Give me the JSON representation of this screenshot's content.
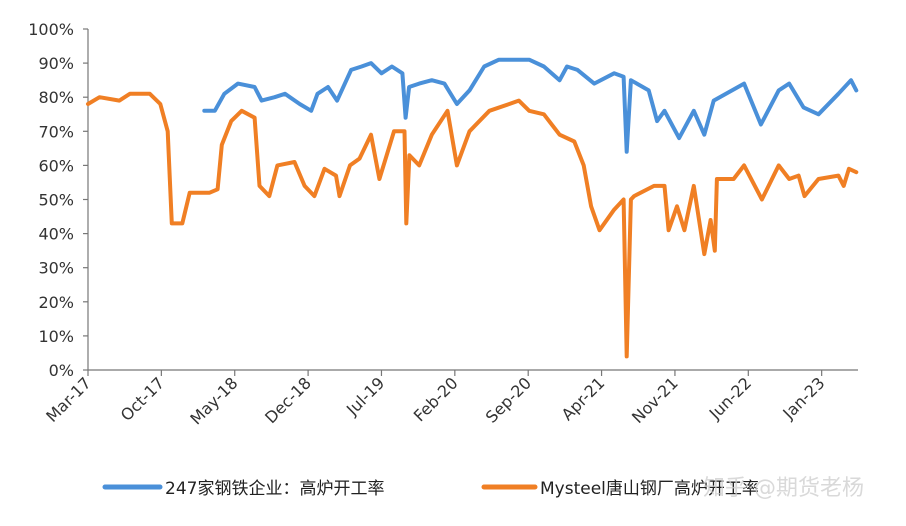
{
  "chart_data": {
    "type": "line",
    "title": "",
    "xlabel": "",
    "ylabel": "",
    "ylim": [
      0,
      100
    ],
    "y_ticks": [
      "0%",
      "10%",
      "20%",
      "30%",
      "40%",
      "50%",
      "60%",
      "70%",
      "80%",
      "90%",
      "100%"
    ],
    "x_ticks": [
      "Mar-17",
      "Oct-17",
      "May-18",
      "Dec-18",
      "Jul-19",
      "Feb-20",
      "Sep-20",
      "Apr-21",
      "Nov-21",
      "Jun-22",
      "Jan-23"
    ],
    "xlim": [
      "2017-03-01",
      "2023-04-15"
    ],
    "grid": false,
    "legend_position": "bottom",
    "series": [
      {
        "name": "247家钢铁企业：高炉开工率",
        "color": "#4a90d9",
        "points": [
          [
            "2018-02-04",
            76
          ],
          [
            "2018-03-04",
            76
          ],
          [
            "2018-04-01",
            81
          ],
          [
            "2018-05-10",
            84
          ],
          [
            "2018-06-28",
            83
          ],
          [
            "2018-07-18",
            79
          ],
          [
            "2018-08-25",
            80
          ],
          [
            "2018-09-25",
            81
          ],
          [
            "2018-11-07",
            78
          ],
          [
            "2018-12-10",
            76
          ],
          [
            "2018-12-28",
            81
          ],
          [
            "2019-01-28",
            83
          ],
          [
            "2019-02-24",
            79
          ],
          [
            "2019-04-04",
            88
          ],
          [
            "2019-05-04",
            89
          ],
          [
            "2019-06-01",
            90
          ],
          [
            "2019-07-01",
            87
          ],
          [
            "2019-08-01",
            89
          ],
          [
            "2019-09-01",
            87
          ],
          [
            "2019-09-10",
            74
          ],
          [
            "2019-09-20",
            83
          ],
          [
            "2019-10-19",
            84
          ],
          [
            "2019-11-25",
            85
          ],
          [
            "2020-01-01",
            84
          ],
          [
            "2020-02-07",
            78
          ],
          [
            "2020-03-13",
            82
          ],
          [
            "2020-04-25",
            89
          ],
          [
            "2020-06-07",
            91
          ],
          [
            "2020-09-04",
            91
          ],
          [
            "2020-10-16",
            89
          ],
          [
            "2020-12-01",
            85
          ],
          [
            "2020-12-22",
            89
          ],
          [
            "2021-01-22",
            88
          ],
          [
            "2021-03-10",
            84
          ],
          [
            "2021-05-07",
            87
          ],
          [
            "2021-06-04",
            86
          ],
          [
            "2021-06-13",
            64
          ],
          [
            "2021-06-25",
            85
          ],
          [
            "2021-08-16",
            82
          ],
          [
            "2021-09-10",
            73
          ],
          [
            "2021-10-01",
            76
          ],
          [
            "2021-11-13",
            68
          ],
          [
            "2021-12-25",
            76
          ],
          [
            "2022-01-25",
            69
          ],
          [
            "2022-02-22",
            79
          ],
          [
            "2022-05-19",
            84
          ],
          [
            "2022-07-07",
            72
          ],
          [
            "2022-08-28",
            82
          ],
          [
            "2022-09-28",
            84
          ],
          [
            "2022-11-09",
            77
          ],
          [
            "2022-12-22",
            75
          ],
          [
            "2023-02-19",
            81
          ],
          [
            "2023-03-25",
            85
          ],
          [
            "2023-04-10",
            82
          ]
        ]
      },
      {
        "name": "Mysteel唐山钢厂高炉开工率",
        "color": "#f07f24",
        "points": [
          [
            "2017-03-01",
            78
          ],
          [
            "2017-04-04",
            80
          ],
          [
            "2017-06-01",
            79
          ],
          [
            "2017-07-01",
            81
          ],
          [
            "2017-08-28",
            81
          ],
          [
            "2017-09-28",
            78
          ],
          [
            "2017-10-19",
            70
          ],
          [
            "2017-11-01",
            43
          ],
          [
            "2017-12-01",
            43
          ],
          [
            "2017-12-22",
            52
          ],
          [
            "2018-02-19",
            52
          ],
          [
            "2018-03-12",
            53
          ],
          [
            "2018-03-24",
            66
          ],
          [
            "2018-04-21",
            73
          ],
          [
            "2018-05-21",
            76
          ],
          [
            "2018-06-28",
            74
          ],
          [
            "2018-07-12",
            54
          ],
          [
            "2018-08-10",
            51
          ],
          [
            "2018-09-03",
            60
          ],
          [
            "2018-10-22",
            61
          ],
          [
            "2018-11-21",
            54
          ],
          [
            "2018-12-19",
            51
          ],
          [
            "2019-01-18",
            59
          ],
          [
            "2019-02-21",
            57
          ],
          [
            "2019-03-01",
            51
          ],
          [
            "2019-04-01",
            60
          ],
          [
            "2019-04-28",
            62
          ],
          [
            "2019-06-01",
            69
          ],
          [
            "2019-06-25",
            56
          ],
          [
            "2019-08-07",
            70
          ],
          [
            "2019-09-07",
            70
          ],
          [
            "2019-09-12",
            43
          ],
          [
            "2019-09-21",
            63
          ],
          [
            "2019-10-19",
            60
          ],
          [
            "2019-11-25",
            69
          ],
          [
            "2020-01-10",
            76
          ],
          [
            "2020-02-07",
            60
          ],
          [
            "2020-03-13",
            70
          ],
          [
            "2020-05-10",
            76
          ],
          [
            "2020-07-07",
            78
          ],
          [
            "2020-08-04",
            79
          ],
          [
            "2020-09-04",
            76
          ],
          [
            "2020-10-16",
            75
          ],
          [
            "2020-12-01",
            69
          ],
          [
            "2021-01-13",
            67
          ],
          [
            "2021-02-10",
            60
          ],
          [
            "2021-03-01",
            48
          ],
          [
            "2021-03-25",
            41
          ],
          [
            "2021-05-07",
            47
          ],
          [
            "2021-06-04",
            50
          ],
          [
            "2021-06-13",
            4
          ],
          [
            "2021-06-25",
            50
          ],
          [
            "2021-07-04",
            51
          ],
          [
            "2021-09-01",
            54
          ],
          [
            "2021-10-01",
            54
          ],
          [
            "2021-10-13",
            41
          ],
          [
            "2021-11-07",
            48
          ],
          [
            "2021-11-28",
            41
          ],
          [
            "2021-12-25",
            54
          ],
          [
            "2022-01-25",
            34
          ],
          [
            "2022-02-13",
            44
          ],
          [
            "2022-02-25",
            35
          ],
          [
            "2022-03-01",
            56
          ],
          [
            "2022-04-19",
            56
          ],
          [
            "2022-05-19",
            60
          ],
          [
            "2022-07-10",
            50
          ],
          [
            "2022-08-28",
            60
          ],
          [
            "2022-09-28",
            56
          ],
          [
            "2022-10-25",
            57
          ],
          [
            "2022-11-12",
            51
          ],
          [
            "2022-12-22",
            56
          ],
          [
            "2023-02-19",
            57
          ],
          [
            "2023-03-04",
            54
          ],
          [
            "2023-03-19",
            59
          ],
          [
            "2023-04-10",
            58
          ]
        ]
      }
    ]
  },
  "watermark": "知乎 @期货老杨"
}
